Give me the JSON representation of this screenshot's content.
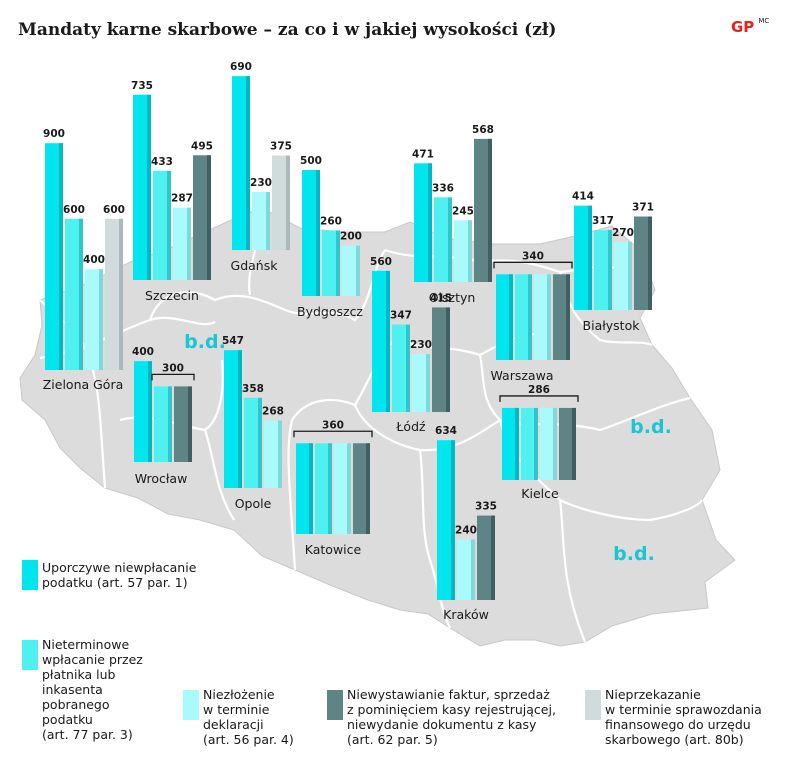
{
  "title": "Mandaty karne skarbowe – za co i w jakiej wysokości (zł)",
  "logo": {
    "mark": "GP",
    "credit": "MC"
  },
  "colors": {
    "s1": "#00e5ee",
    "s1_dark": "#00b8c4",
    "s2": "#4ff0f0",
    "s2_dark": "#2cc8cc",
    "s3": "#a9fbfb",
    "s3_dark": "#7fd9db",
    "s4": "#5f8486",
    "s4_dark": "#3f5f61",
    "s5": "#d0dcdc",
    "s5_dark": "#aab9b9",
    "map": "#dcdcdc",
    "map_border": "#ffffff",
    "bd": "#19c6d4"
  },
  "chart_data": {
    "type": "bar",
    "title": "Mandaty karne skarbowe – za co i w jakiej wysokości (zł)",
    "series": [
      {
        "key": "s1",
        "name": "Uporczywe niewpłacanie podatku (art. 57 par. 1)"
      },
      {
        "key": "s2",
        "name": "Nieterminowe wpłacanie przez płatnika lub inkasenta pobranego podatku (art. 77 par. 3)"
      },
      {
        "key": "s3",
        "name": "Niezłożenie w terminie deklaracji (art. 56 par. 4)"
      },
      {
        "key": "s4",
        "name": "Niewystawianie faktur, sprzedaż z pominięciem kasy rejestrującej, niewydanie dokumentu z kasy (art. 62 par. 5)"
      },
      {
        "key": "s5",
        "name": "Nieprzekazanie w terminie sprawozdania finansowego do urzędu skarbowego (art. 80b)"
      }
    ],
    "cities": [
      {
        "name": "Zielona Góra",
        "bars": [
          {
            "s": "s1",
            "v": 900
          },
          {
            "s": "s2",
            "v": 600
          },
          {
            "s": "s3",
            "v": 400
          },
          {
            "s": "s5",
            "v": 600
          }
        ]
      },
      {
        "name": "Szczecin",
        "bars": [
          {
            "s": "s1",
            "v": 735
          },
          {
            "s": "s2",
            "v": 433
          },
          {
            "s": "s3",
            "v": 287
          },
          {
            "s": "s4",
            "v": 495
          }
        ]
      },
      {
        "name": "Gdańsk",
        "bars": [
          {
            "s": "s1",
            "v": 690
          },
          {
            "s": "s3",
            "v": 230
          },
          {
            "s": "s5",
            "v": 375
          }
        ]
      },
      {
        "name": "Bydgoszcz",
        "bars": [
          {
            "s": "s1",
            "v": 500
          },
          {
            "s": "s2",
            "v": 260
          },
          {
            "s": "s3",
            "v": 200
          }
        ]
      },
      {
        "name": "Olsztyn",
        "bars": [
          {
            "s": "s1",
            "v": 471
          },
          {
            "s": "s2",
            "v": 336
          },
          {
            "s": "s3",
            "v": 245
          },
          {
            "s": "s4",
            "v": 568
          }
        ]
      },
      {
        "name": "Białystok",
        "bars": [
          {
            "s": "s1",
            "v": 414
          },
          {
            "s": "s2",
            "v": 317
          },
          {
            "s": "s3",
            "v": 270
          },
          {
            "s": "s4",
            "v": 371
          }
        ]
      },
      {
        "name": "Warszawa",
        "group_value": 340,
        "bars": [
          {
            "s": "s1",
            "v": 340
          },
          {
            "s": "s2",
            "v": 340
          },
          {
            "s": "s3",
            "v": 340
          },
          {
            "s": "s4",
            "v": 340
          }
        ]
      },
      {
        "name": "Łódź",
        "bars": [
          {
            "s": "s1",
            "v": 560
          },
          {
            "s": "s2",
            "v": 347
          },
          {
            "s": "s3",
            "v": 230
          },
          {
            "s": "s4",
            "v": 415
          }
        ]
      },
      {
        "name": "Wrocław",
        "bars": [
          {
            "s": "s1",
            "v": 400
          },
          {
            "s": "s2",
            "v": 300
          },
          {
            "s": "s4",
            "v": 300
          }
        ],
        "bracket": {
          "value": 300,
          "from": 1,
          "to": 2
        }
      },
      {
        "name": "Opole",
        "bars": [
          {
            "s": "s1",
            "v": 547
          },
          {
            "s": "s2",
            "v": 358
          },
          {
            "s": "s3",
            "v": 268
          }
        ]
      },
      {
        "name": "Katowice",
        "group_value": 360,
        "bars": [
          {
            "s": "s1",
            "v": 360
          },
          {
            "s": "s2",
            "v": 360
          },
          {
            "s": "s3",
            "v": 360
          },
          {
            "s": "s4",
            "v": 360
          }
        ]
      },
      {
        "name": "Kielce",
        "group_value": 286,
        "bars": [
          {
            "s": "s1",
            "v": 286
          },
          {
            "s": "s2",
            "v": 286
          },
          {
            "s": "s3",
            "v": 286
          },
          {
            "s": "s4",
            "v": 286
          }
        ]
      },
      {
        "name": "Kraków",
        "bars": [
          {
            "s": "s1",
            "v": 634
          },
          {
            "s": "s3",
            "v": 240
          },
          {
            "s": "s4",
            "v": 335
          }
        ]
      }
    ],
    "no_data_label": "b.d."
  },
  "legend": [
    {
      "key": "s1",
      "lines": [
        "Uporczywe niewpłacanie",
        "podatku (art. 57 par. 1)"
      ]
    },
    {
      "key": "s2",
      "lines": [
        "Nieterminowe",
        "wpłacanie przez",
        "płatnika lub",
        "inkasenta",
        "pobranego",
        "podatku",
        "(art. 77 par. 3)"
      ]
    },
    {
      "key": "s3",
      "lines": [
        "Niezłożenie",
        "w terminie",
        "deklaracji",
        "(art. 56 par. 4)"
      ]
    },
    {
      "key": "s4",
      "lines": [
        "Niewystawianie faktur, sprzedaż",
        "z pominięciem kasy rejestrującej,",
        "niewydanie dokumentu z kasy",
        "(art. 62 par. 5)"
      ]
    },
    {
      "key": "s5",
      "lines": [
        "Nieprzekazanie",
        "w terminie sprawozdania",
        "finansowego do urzędu",
        "skarbowego (art. 80b)"
      ]
    }
  ]
}
